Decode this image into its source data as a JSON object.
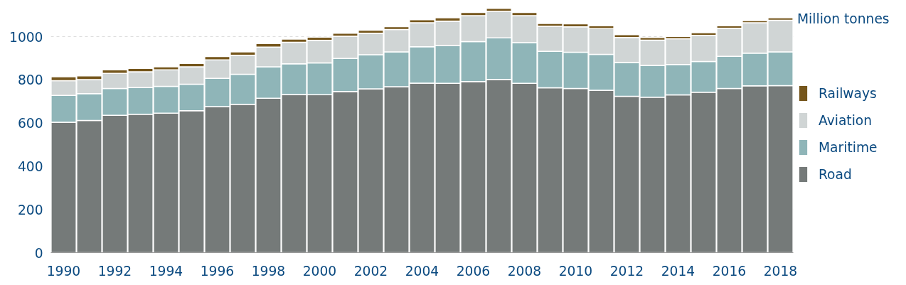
{
  "chart_data": {
    "type": "bar",
    "stacked": true,
    "ylabel": "Million tonnes",
    "x": [
      1990,
      1991,
      1992,
      1993,
      1994,
      1995,
      1996,
      1997,
      1998,
      1999,
      2000,
      2001,
      2002,
      2003,
      2004,
      2005,
      2006,
      2007,
      2008,
      2009,
      2010,
      2011,
      2012,
      2013,
      2014,
      2015,
      2016,
      2017,
      2018
    ],
    "xlim": [
      1989.5,
      2018.5
    ],
    "xticks": [
      1990,
      1992,
      1994,
      1996,
      1998,
      2000,
      2002,
      2004,
      2006,
      2008,
      2010,
      2012,
      2014,
      2016,
      2018
    ],
    "ylim": [
      0,
      1135
    ],
    "yticks": [
      0,
      200,
      400,
      600,
      800,
      1000
    ],
    "grid": "y",
    "legend": "right",
    "series": [
      {
        "name": "Road",
        "color": "#757a79",
        "values": [
          604,
          612,
          636,
          641,
          646,
          657,
          676,
          687,
          715,
          732,
          731,
          746,
          758,
          768,
          785,
          784,
          792,
          802,
          784,
          763,
          760,
          752,
          724,
          720,
          730,
          743,
          760,
          772,
          773
        ]
      },
      {
        "name": "Maritime",
        "color": "#8fb5b8",
        "values": [
          124,
          124,
          124,
          123,
          124,
          123,
          131,
          139,
          145,
          142,
          147,
          153,
          158,
          161,
          168,
          174,
          185,
          192,
          188,
          169,
          168,
          166,
          156,
          147,
          141,
          142,
          149,
          152,
          156
        ]
      },
      {
        "name": "Aviation",
        "color": "#d0d5d5",
        "values": [
          68,
          65,
          70,
          73,
          76,
          80,
          85,
          88,
          92,
          100,
          105,
          103,
          100,
          104,
          111,
          114,
          120,
          123,
          125,
          116,
          117,
          119,
          116,
          117,
          119,
          121,
          130,
          140,
          147
        ]
      },
      {
        "name": "Railways",
        "color": "#75561c",
        "values": [
          18,
          17,
          16,
          16,
          14,
          16,
          16,
          15,
          16,
          15,
          15,
          14,
          14,
          13,
          14,
          15,
          15,
          14,
          15,
          13,
          14,
          13,
          13,
          12,
          11,
          12,
          11,
          10,
          11
        ]
      }
    ]
  }
}
